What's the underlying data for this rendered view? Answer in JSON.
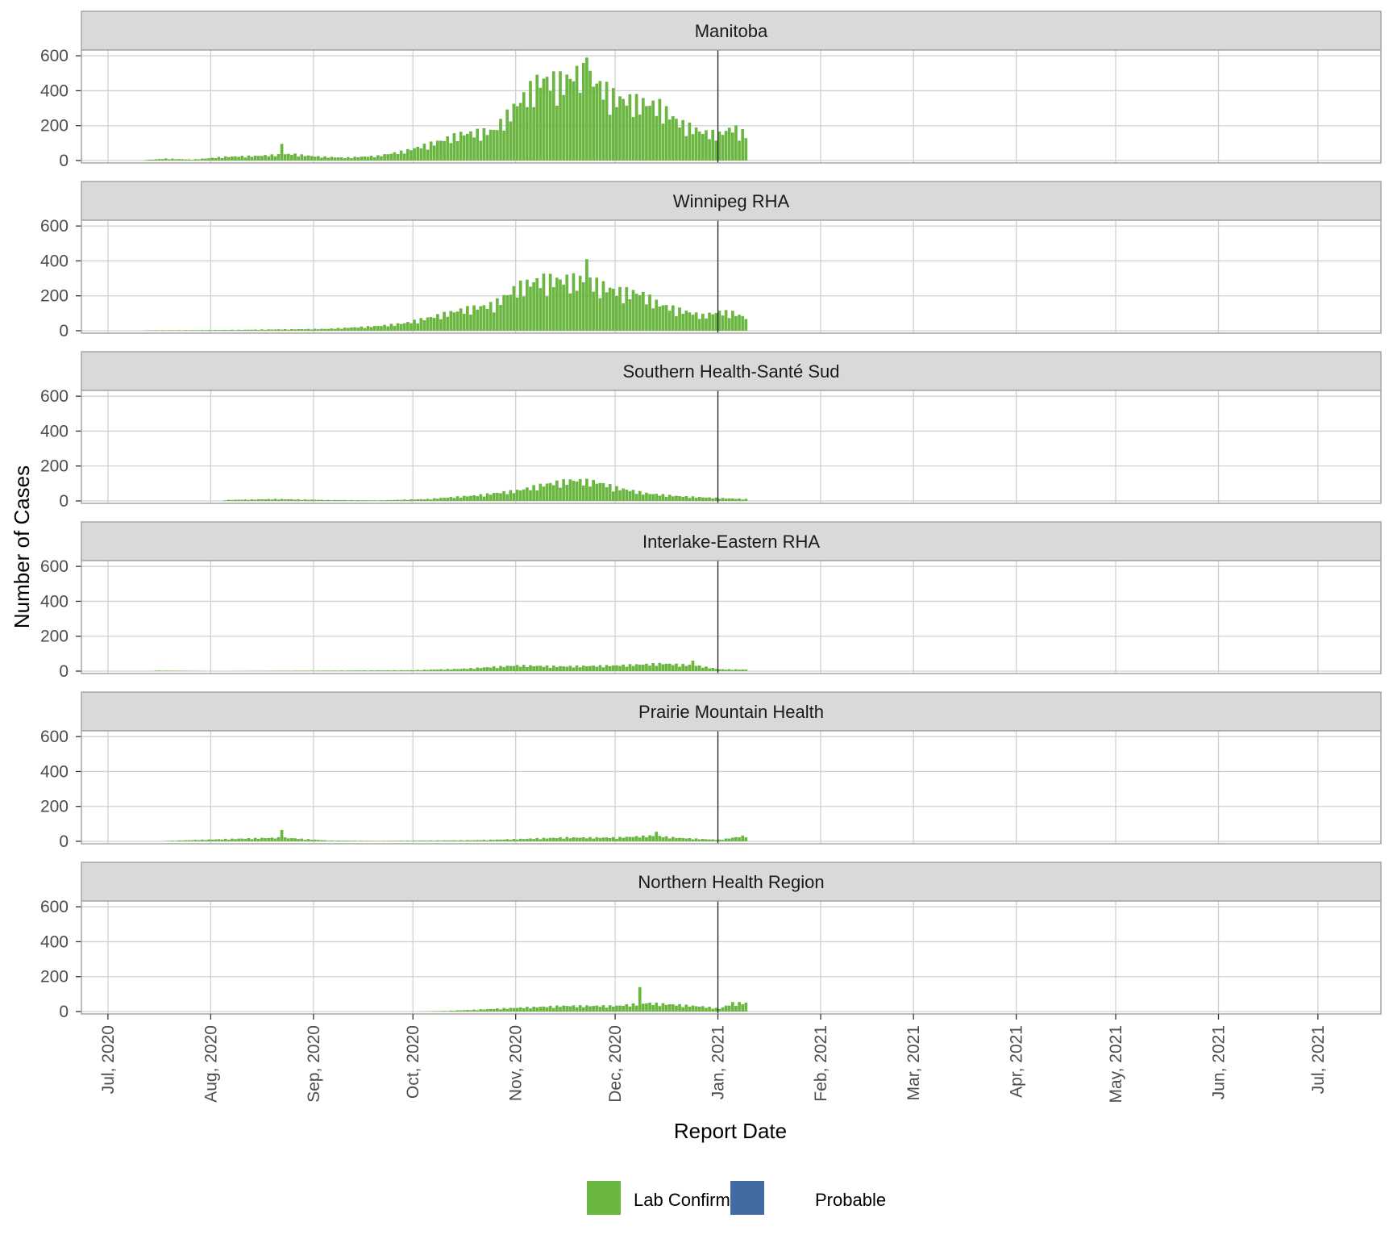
{
  "chart_data": {
    "type": "bar",
    "facets": [
      "Manitoba",
      "Winnipeg RHA",
      "Southern Health-Santé Sud",
      "Interlake-Eastern RHA",
      "Prairie Mountain Health",
      "Northern Health Region"
    ],
    "xlabel": "Report Date",
    "ylabel": "Number of Cases",
    "xlim": [
      "2020-06-23",
      "2021-07-20"
    ],
    "ylim": [
      0,
      610
    ],
    "y_ticks": [
      0,
      200,
      400,
      600
    ],
    "x_ticks": [
      "2020-07-01",
      "2020-08-01",
      "2020-09-01",
      "2020-10-01",
      "2020-11-01",
      "2020-12-01",
      "2021-01-01",
      "2021-02-01",
      "2021-03-01",
      "2021-04-01",
      "2021-05-01",
      "2021-06-01",
      "2021-07-01"
    ],
    "x_tick_labels": [
      "Jul, 2020",
      "Aug, 2020",
      "Sep, 2020",
      "Oct, 2020",
      "Nov, 2020",
      "Dec, 2020",
      "Jan, 2021",
      "Feb, 2021",
      "Mar, 2021",
      "Apr, 2021",
      "May, 2021",
      "Jun, 2021",
      "Jul, 2021"
    ],
    "reference_line_date": "2021-01-01",
    "grid": true,
    "legend": {
      "position": "bottom",
      "items": [
        {
          "label": "Lab Confirmed",
          "color": "#6ab640"
        },
        {
          "label": "Probable",
          "color": "#426aa3"
        }
      ]
    },
    "series_note": "Daily bar heights are approximate readings of the plotted shapes, stored as anchor points per panel (date, cases).",
    "panels": [
      {
        "name": "Manitoba",
        "anchors": [
          [
            "2020-07-12",
            3
          ],
          [
            "2020-07-18",
            10
          ],
          [
            "2020-07-26",
            5
          ],
          [
            "2020-08-05",
            20
          ],
          [
            "2020-08-15",
            25
          ],
          [
            "2020-08-25",
            35
          ],
          [
            "2020-09-01",
            22
          ],
          [
            "2020-09-10",
            15
          ],
          [
            "2020-09-20",
            25
          ],
          [
            "2020-09-28",
            50
          ],
          [
            "2020-10-08",
            100
          ],
          [
            "2020-10-15",
            140
          ],
          [
            "2020-10-25",
            160
          ],
          [
            "2020-11-01",
            300
          ],
          [
            "2020-11-08",
            430
          ],
          [
            "2020-11-15",
            420
          ],
          [
            "2020-11-20",
            470
          ],
          [
            "2020-11-26",
            400
          ],
          [
            "2020-12-01",
            330
          ],
          [
            "2020-12-08",
            310
          ],
          [
            "2020-12-14",
            290
          ],
          [
            "2020-12-20",
            200
          ],
          [
            "2020-12-27",
            150
          ],
          [
            "2021-01-01",
            140
          ],
          [
            "2021-01-05",
            175
          ],
          [
            "2021-01-09",
            140
          ]
        ],
        "spikes": [
          [
            "2020-08-22",
            95
          ],
          [
            "2020-11-22",
            590
          ],
          [
            "2020-11-10",
            480
          ]
        ]
      },
      {
        "name": "Winnipeg RHA",
        "anchors": [
          [
            "2020-07-12",
            2
          ],
          [
            "2020-07-26",
            3
          ],
          [
            "2020-08-10",
            5
          ],
          [
            "2020-08-25",
            8
          ],
          [
            "2020-09-05",
            10
          ],
          [
            "2020-09-20",
            25
          ],
          [
            "2020-09-28",
            40
          ],
          [
            "2020-10-08",
            80
          ],
          [
            "2020-10-15",
            110
          ],
          [
            "2020-10-25",
            140
          ],
          [
            "2020-11-01",
            230
          ],
          [
            "2020-11-08",
            270
          ],
          [
            "2020-11-15",
            270
          ],
          [
            "2020-11-22",
            270
          ],
          [
            "2020-12-01",
            210
          ],
          [
            "2020-12-08",
            200
          ],
          [
            "2020-12-14",
            140
          ],
          [
            "2020-12-20",
            110
          ],
          [
            "2020-12-27",
            80
          ],
          [
            "2021-01-01",
            100
          ],
          [
            "2021-01-05",
            95
          ],
          [
            "2021-01-09",
            70
          ]
        ],
        "spikes": [
          [
            "2020-11-22",
            410
          ]
        ]
      },
      {
        "name": "Southern Health-Santé Sud",
        "anchors": [
          [
            "2020-08-05",
            5
          ],
          [
            "2020-08-20",
            10
          ],
          [
            "2020-09-05",
            5
          ],
          [
            "2020-09-20",
            3
          ],
          [
            "2020-10-05",
            10
          ],
          [
            "2020-10-20",
            30
          ],
          [
            "2020-11-01",
            55
          ],
          [
            "2020-11-10",
            90
          ],
          [
            "2020-11-18",
            110
          ],
          [
            "2020-11-25",
            100
          ],
          [
            "2020-12-01",
            70
          ],
          [
            "2020-12-10",
            40
          ],
          [
            "2020-12-20",
            25
          ],
          [
            "2021-01-01",
            15
          ],
          [
            "2021-01-09",
            10
          ]
        ],
        "spikes": []
      },
      {
        "name": "Interlake-Eastern RHA",
        "anchors": [
          [
            "2020-07-15",
            3
          ],
          [
            "2020-08-01",
            0
          ],
          [
            "2020-09-10",
            3
          ],
          [
            "2020-10-01",
            5
          ],
          [
            "2020-10-15",
            12
          ],
          [
            "2020-11-01",
            30
          ],
          [
            "2020-11-15",
            25
          ],
          [
            "2020-12-01",
            30
          ],
          [
            "2020-12-15",
            40
          ],
          [
            "2020-12-25",
            30
          ],
          [
            "2021-01-01",
            10
          ],
          [
            "2021-01-09",
            8
          ]
        ],
        "spikes": [
          [
            "2020-12-24",
            60
          ]
        ]
      },
      {
        "name": "Prairie Mountain Health",
        "anchors": [
          [
            "2020-07-18",
            2
          ],
          [
            "2020-08-05",
            12
          ],
          [
            "2020-08-22",
            20
          ],
          [
            "2020-09-05",
            4
          ],
          [
            "2020-09-20",
            2
          ],
          [
            "2020-10-05",
            4
          ],
          [
            "2020-10-20",
            6
          ],
          [
            "2020-11-01",
            12
          ],
          [
            "2020-11-15",
            20
          ],
          [
            "2020-12-01",
            20
          ],
          [
            "2020-12-12",
            30
          ],
          [
            "2020-12-20",
            18
          ],
          [
            "2021-01-01",
            8
          ],
          [
            "2021-01-09",
            30
          ]
        ],
        "spikes": [
          [
            "2020-08-22",
            65
          ],
          [
            "2020-12-13",
            55
          ]
        ]
      },
      {
        "name": "Northern Health Region",
        "anchors": [
          [
            "2020-10-01",
            0
          ],
          [
            "2020-10-10",
            3
          ],
          [
            "2020-10-20",
            10
          ],
          [
            "2020-11-01",
            20
          ],
          [
            "2020-11-15",
            30
          ],
          [
            "2020-12-01",
            30
          ],
          [
            "2020-12-10",
            45
          ],
          [
            "2020-12-20",
            35
          ],
          [
            "2020-12-28",
            25
          ],
          [
            "2021-01-01",
            15
          ],
          [
            "2021-01-05",
            45
          ],
          [
            "2021-01-09",
            45
          ]
        ],
        "spikes": [
          [
            "2020-12-08",
            140
          ],
          [
            "2020-09-28",
            5
          ]
        ]
      }
    ]
  }
}
